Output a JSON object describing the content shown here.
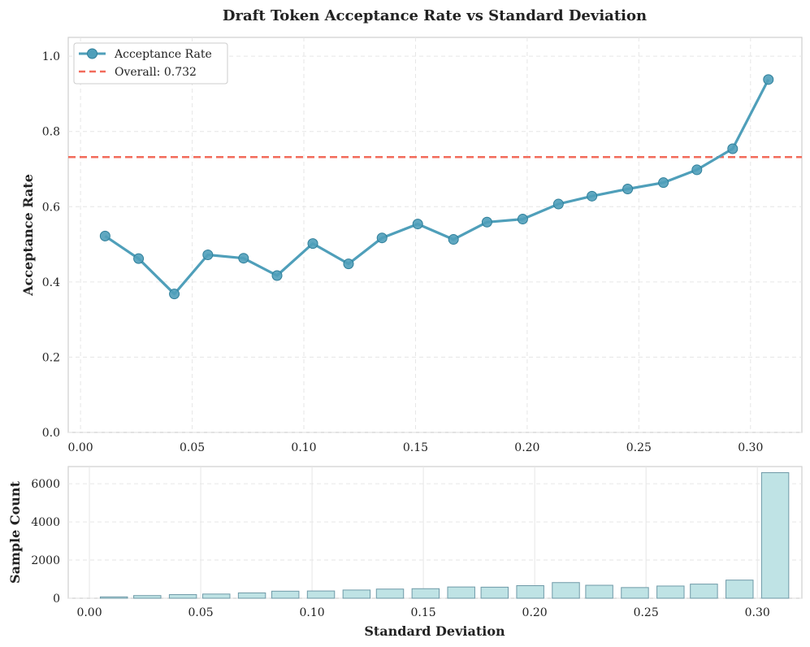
{
  "chart_data": [
    {
      "type": "line",
      "title": "Draft Token Acceptance Rate vs Standard Deviation",
      "xlabel": "",
      "ylabel": "Acceptance Rate",
      "xlim": [
        -0.0055,
        0.323
      ],
      "ylim": [
        0,
        1.05
      ],
      "xticks": [
        0.0,
        0.05,
        0.1,
        0.15,
        0.2,
        0.25,
        0.3
      ],
      "xtick_labels": [
        "0.00",
        "0.05",
        "0.10",
        "0.15",
        "0.20",
        "0.25",
        "0.30"
      ],
      "yticks": [
        0.0,
        0.2,
        0.4,
        0.6,
        0.8,
        1.0
      ],
      "ytick_labels": [
        "0.0",
        "0.2",
        "0.4",
        "0.6",
        "0.8",
        "1.0"
      ],
      "grid": true,
      "legend_position": "top-left",
      "series": [
        {
          "name": "Acceptance Rate",
          "color": "#4f9fba",
          "x": [
            0.011,
            0.026,
            0.042,
            0.057,
            0.073,
            0.088,
            0.104,
            0.12,
            0.135,
            0.151,
            0.167,
            0.182,
            0.198,
            0.214,
            0.229,
            0.245,
            0.261,
            0.276,
            0.292,
            0.308
          ],
          "y": [
            0.522,
            0.462,
            0.368,
            0.472,
            0.463,
            0.417,
            0.502,
            0.448,
            0.517,
            0.554,
            0.513,
            0.559,
            0.567,
            0.607,
            0.628,
            0.647,
            0.664,
            0.698,
            0.754,
            0.938
          ]
        }
      ],
      "reference_lines": [
        {
          "label": "Overall: 0.732",
          "y": 0.732,
          "color": "#f26b5b"
        }
      ]
    },
    {
      "type": "bar",
      "title": "",
      "xlabel": "Standard Deviation",
      "ylabel": "Sample Count",
      "xlim": [
        -0.0055,
        0.323
      ],
      "ylim": [
        0,
        6900
      ],
      "xticks": [
        0.0,
        0.05,
        0.1,
        0.15,
        0.2,
        0.25,
        0.3
      ],
      "xtick_labels": [
        "0.00",
        "0.05",
        "0.10",
        "0.15",
        "0.20",
        "0.25",
        "0.30"
      ],
      "yticks": [
        0,
        2000,
        4000,
        6000
      ],
      "ytick_labels": [
        "0",
        "2000",
        "4000",
        "6000"
      ],
      "grid": true,
      "bar_color": "#bfe3e5",
      "bar_edge_color": "#6f9aa8",
      "bar_width": 0.0122,
      "x": [
        0.011,
        0.026,
        0.042,
        0.057,
        0.073,
        0.088,
        0.104,
        0.12,
        0.135,
        0.151,
        0.167,
        0.182,
        0.198,
        0.214,
        0.229,
        0.245,
        0.261,
        0.276,
        0.292,
        0.308
      ],
      "values": [
        70,
        140,
        190,
        220,
        280,
        370,
        380,
        430,
        480,
        500,
        590,
        580,
        660,
        820,
        680,
        560,
        640,
        740,
        950,
        6580
      ]
    }
  ]
}
